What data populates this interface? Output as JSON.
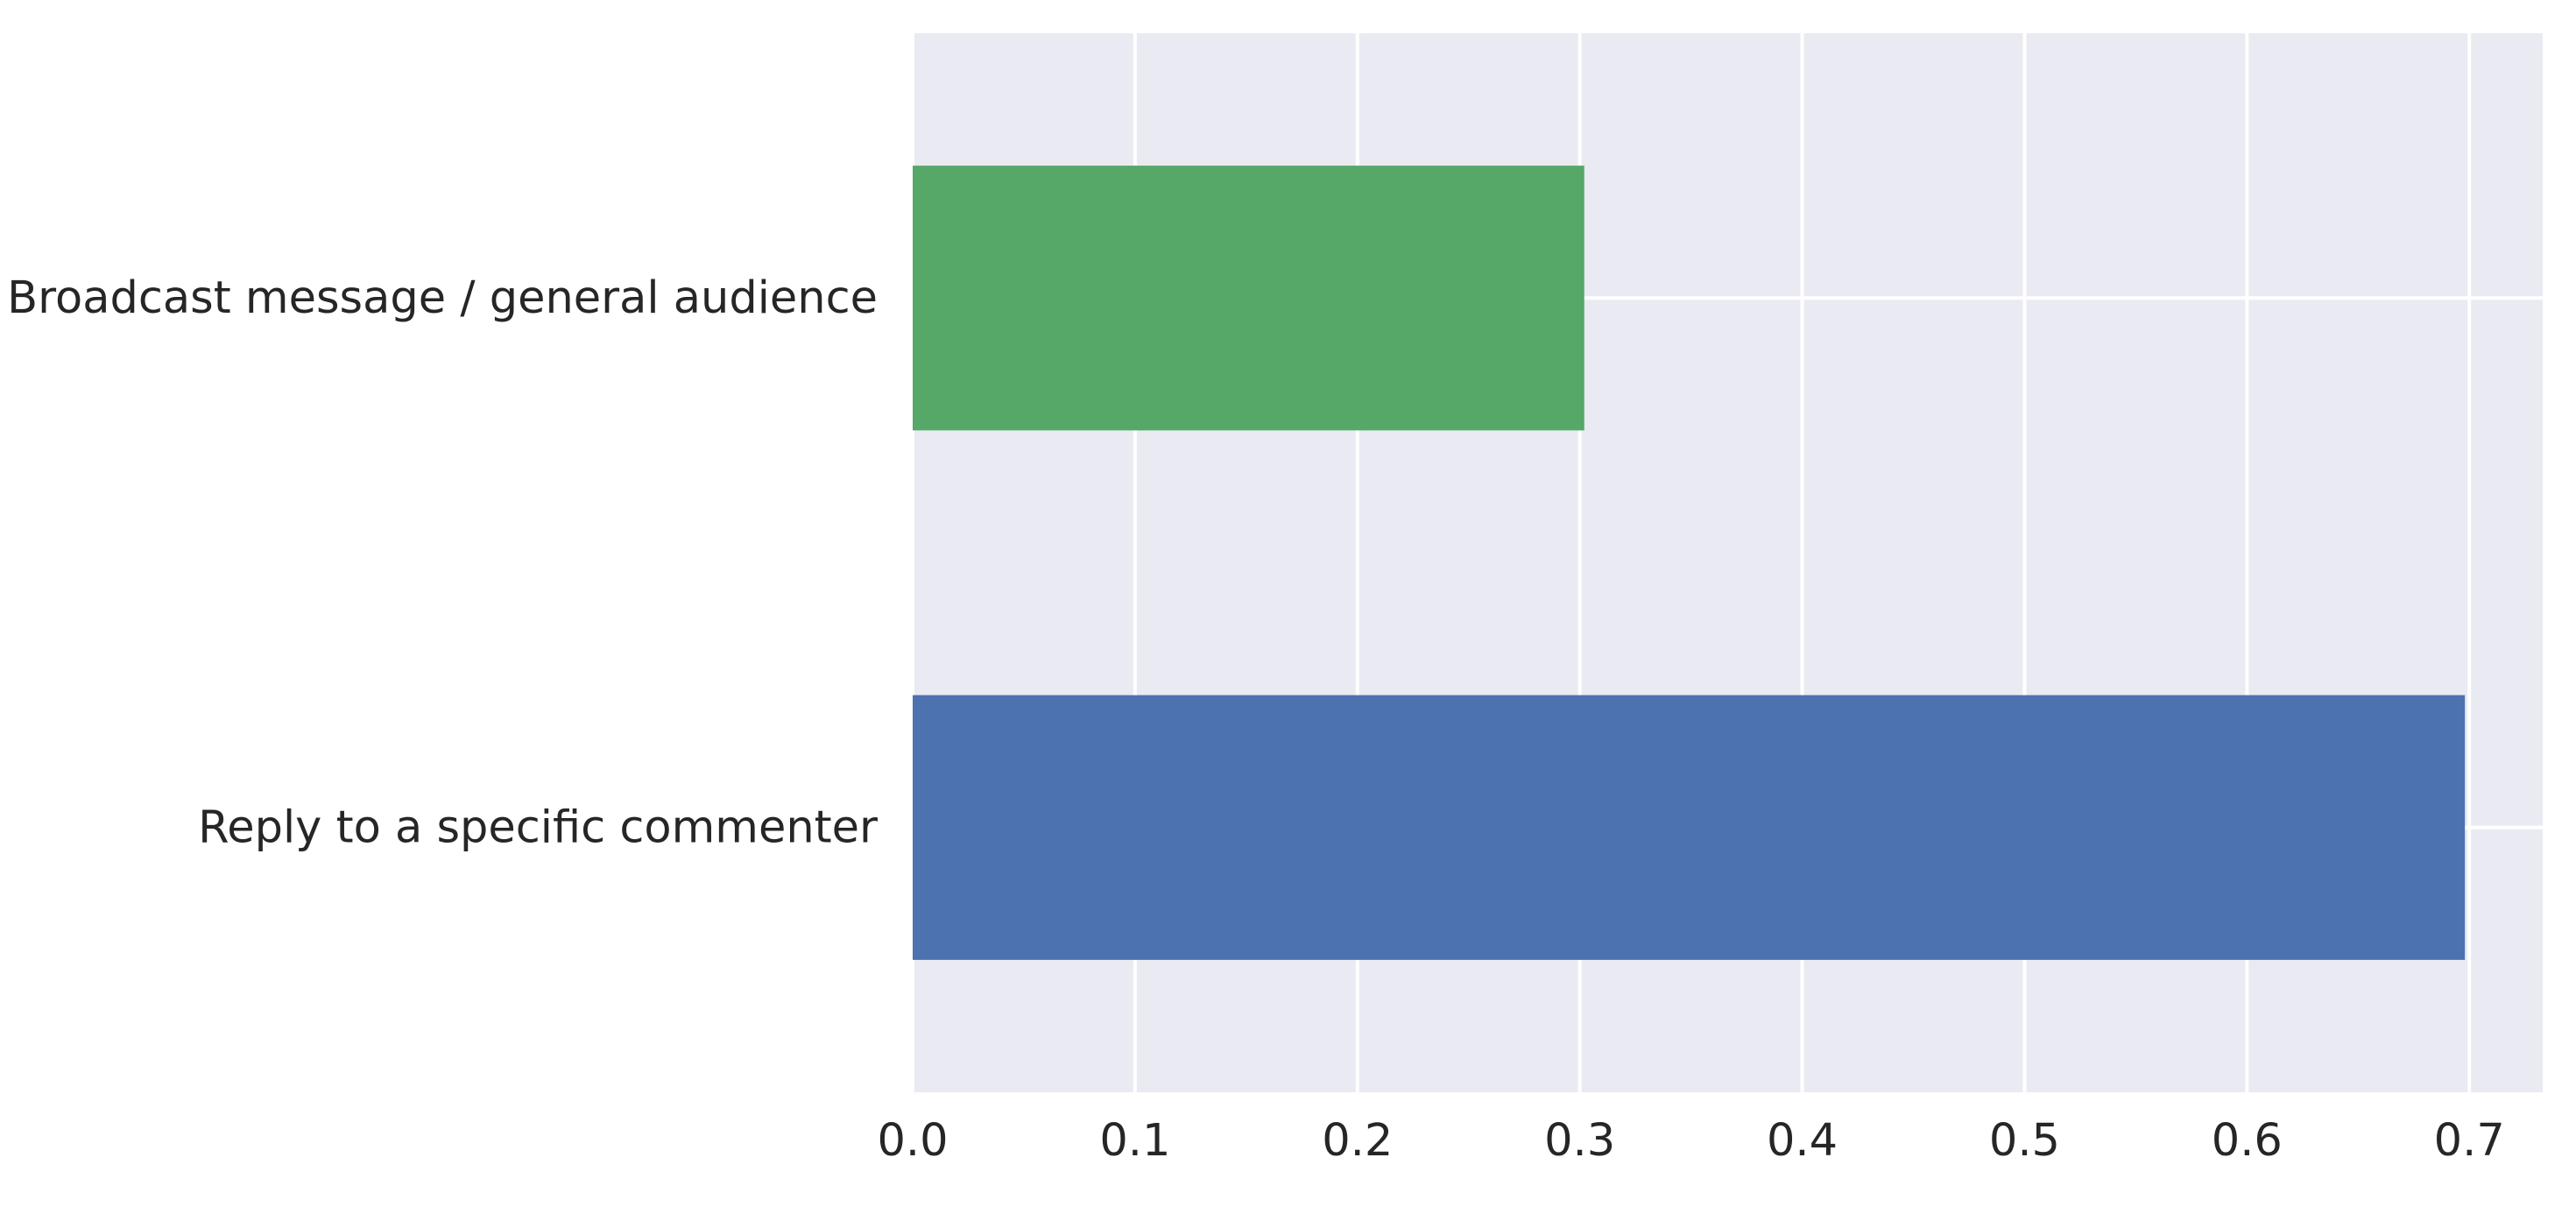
{
  "chart_data": {
    "type": "bar",
    "orientation": "horizontal",
    "title": "",
    "xlabel": "",
    "ylabel": "",
    "categories": [
      "Broadcast message / general audience",
      "Reply to a specific commenter"
    ],
    "values": [
      0.302,
      0.698
    ],
    "colors": [
      "#55a868",
      "#4c72b0"
    ],
    "xlim": [
      0.0,
      0.733
    ],
    "xticks": [
      0.0,
      0.1,
      0.2,
      0.3,
      0.4,
      0.5,
      0.6,
      0.7
    ],
    "xtick_labels": [
      "0.0",
      "0.1",
      "0.2",
      "0.3",
      "0.4",
      "0.5",
      "0.6",
      "0.7"
    ],
    "grid": true,
    "style": {
      "background": "#eaeaf2",
      "grid_color": "#ffffff",
      "text_color": "#262626"
    }
  }
}
